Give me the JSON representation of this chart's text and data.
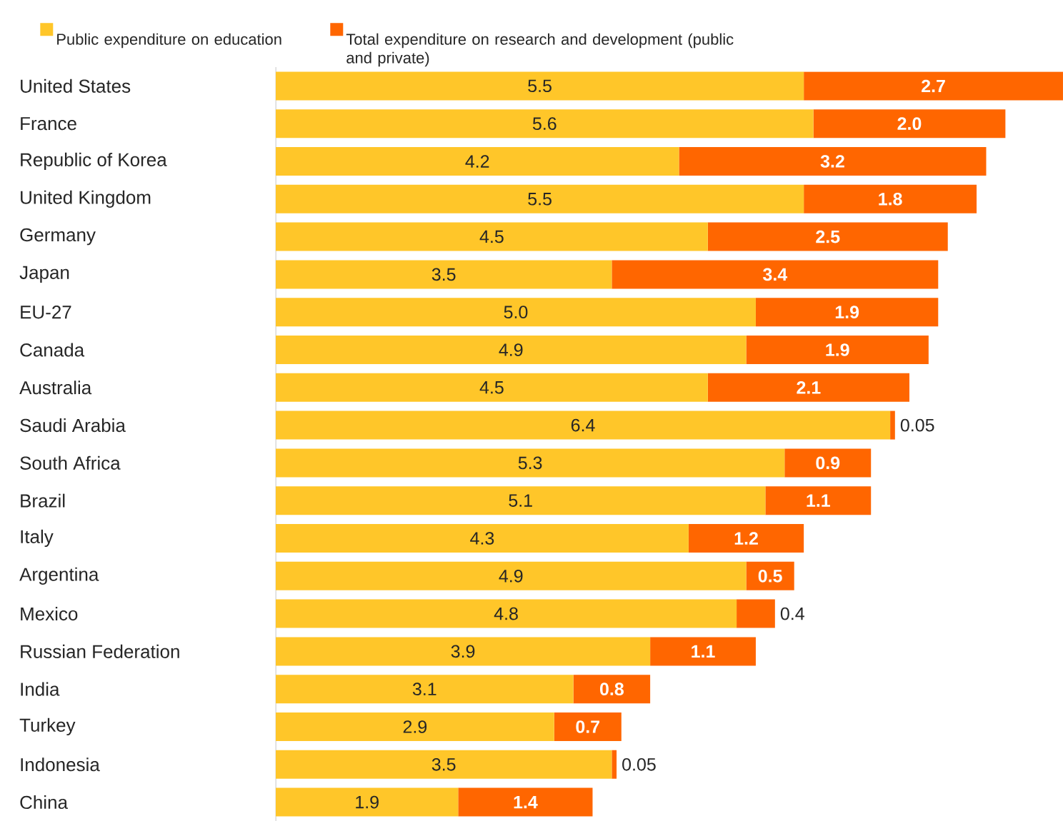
{
  "chart_data": {
    "type": "bar",
    "orientation": "horizontal",
    "stacked": true,
    "legend": "top",
    "categories": [
      "United States",
      "France",
      "Republic of Korea",
      "United Kingdom",
      "Germany",
      "Japan",
      "EU-27",
      "Canada",
      "Australia",
      "Saudi Arabia",
      "South Africa",
      "Brazil",
      "Italy",
      "Argentina",
      "Mexico",
      "Russian Federation",
      "India",
      "Turkey",
      "Indonesia",
      "China"
    ],
    "series": [
      {
        "name": "Public expenditure on education",
        "color": "#ffc629",
        "values": [
          5.5,
          5.6,
          4.2,
          5.5,
          4.5,
          3.5,
          5.0,
          4.9,
          4.5,
          6.4,
          5.3,
          5.1,
          4.3,
          4.9,
          4.8,
          3.9,
          3.1,
          2.9,
          3.5,
          1.9
        ],
        "value_labels": [
          "5.5",
          "5.6",
          "4.2",
          "5.5",
          "4.5",
          "3.5",
          "5.0",
          "4.9",
          "4.5",
          "6.4",
          "5.3",
          "5.1",
          "4.3",
          "4.9",
          "4.8",
          "3.9",
          "3.1",
          "2.9",
          "3.5",
          "1.9"
        ]
      },
      {
        "name": "Total expenditure on research and development (public and private)",
        "color": "#ff6600",
        "values": [
          2.7,
          2.0,
          3.2,
          1.8,
          2.5,
          3.4,
          1.9,
          1.9,
          2.1,
          0.05,
          0.9,
          1.1,
          1.2,
          0.5,
          0.4,
          1.1,
          0.8,
          0.7,
          0.05,
          1.4
        ],
        "value_labels": [
          "2.7",
          "2.0",
          "3.2",
          "1.8",
          "2.5",
          "3.4",
          "1.9",
          "1.9",
          "2.1",
          "0.05",
          "0.9",
          "1.1",
          "1.2",
          "0.5",
          "0.4",
          "1.1",
          "0.8",
          "0.7",
          "0.05",
          "1.4"
        ]
      }
    ]
  }
}
